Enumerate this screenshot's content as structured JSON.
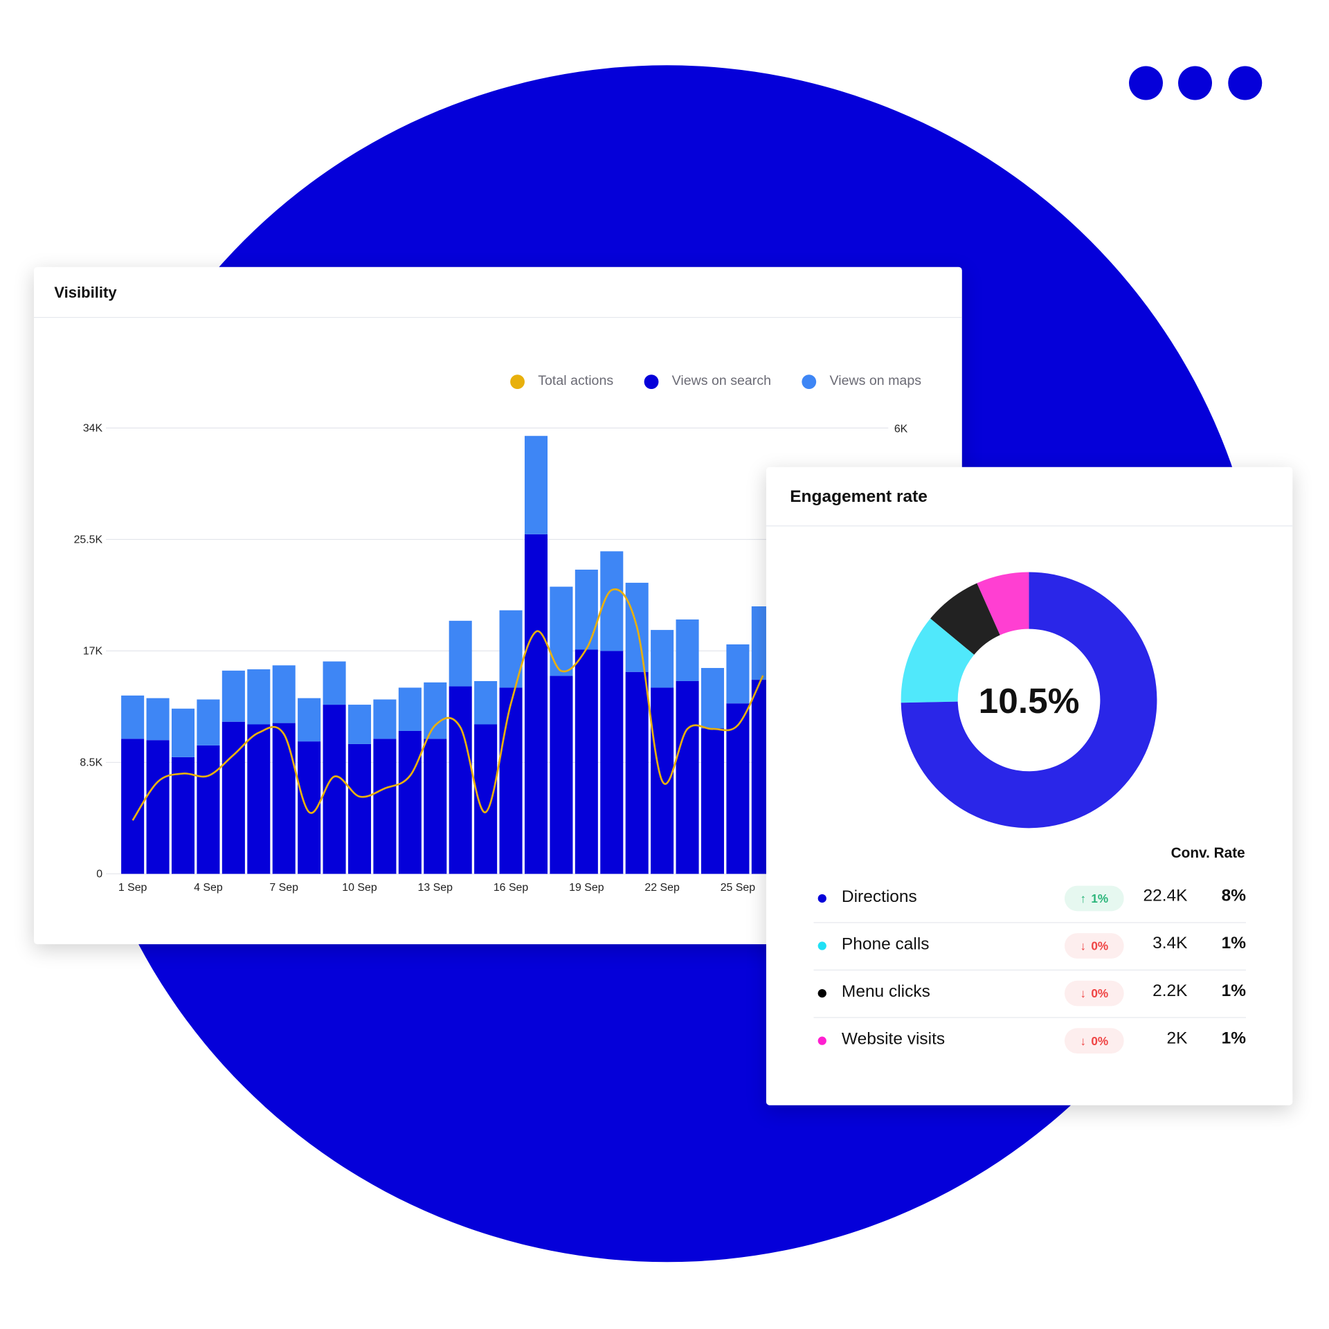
{
  "colors": {
    "background_circle": "#0500d9",
    "window_dots": "#0500d9",
    "views_on_search": "#0500d9",
    "views_on_maps": "#3e86f5",
    "total_actions": "#e8b00c",
    "donut_directions": "#2a26e8",
    "donut_phone_calls": "#50e8fb",
    "donut_menu_clicks": "#222222",
    "donut_website_visits": "#ff3fd2",
    "badge_up_bg": "#e6f8f0",
    "badge_up_text": "#2bb57a",
    "badge_down_bg": "#fdeeee",
    "badge_down_text": "#ef4444"
  },
  "visibility": {
    "title": "Visibility"
  },
  "engagement": {
    "title": "Engagement rate",
    "center_value": "10.5%",
    "conv_rate_header": "Conv. Rate",
    "rows": [
      {
        "label": "Directions",
        "color": "#0500d9",
        "change": "1%",
        "trend": "up",
        "trend_icon": "arrow-up-icon",
        "value": "22.4K",
        "conv_rate": "8%"
      },
      {
        "label": "Phone calls",
        "color": "#20e0f5",
        "change": "0%",
        "trend": "down",
        "trend_icon": "arrow-down-icon",
        "value": "3.4K",
        "conv_rate": "1%"
      },
      {
        "label": "Menu clicks",
        "color": "#000000",
        "change": "0%",
        "trend": "down",
        "trend_icon": "arrow-down-icon",
        "value": "2.2K",
        "conv_rate": "1%"
      },
      {
        "label": "Website visits",
        "color": "#ff1fd0",
        "change": "0%",
        "trend": "down",
        "trend_icon": "arrow-down-icon",
        "value": "2K",
        "conv_rate": "1%"
      }
    ]
  },
  "chart_data": [
    {
      "type": "bar",
      "stacked": true,
      "legend": [
        "Total actions",
        "Views on search",
        "Views on maps"
      ],
      "legend_position": "top-right",
      "grid": true,
      "categories": [
        "1 Sep",
        "2 Sep",
        "3 Sep",
        "4 Sep",
        "5 Sep",
        "6 Sep",
        "7 Sep",
        "8 Sep",
        "9 Sep",
        "10 Sep",
        "11 Sep",
        "12 Sep",
        "13 Sep",
        "14 Sep",
        "15 Sep",
        "16 Sep",
        "17 Sep",
        "18 Sep",
        "19 Sep",
        "20 Sep",
        "21 Sep",
        "22 Sep",
        "23 Sep",
        "24 Sep",
        "25 Sep",
        "26 Sep"
      ],
      "x_tick_labels": [
        "1 Sep",
        "4 Sep",
        "7 Sep",
        "10 Sep",
        "13 Sep",
        "16 Sep",
        "19 Sep",
        "22 Sep",
        "25 Sep"
      ],
      "y_tick_labels": [
        "0",
        "8.5K",
        "17K",
        "25.5K",
        "34K"
      ],
      "y2_tick_labels": [
        "6K"
      ],
      "ylim": [
        0,
        34000
      ],
      "y2lim": [
        0,
        6000
      ],
      "series": [
        {
          "name": "Views on search",
          "axis": "left",
          "values": [
            10300,
            10200,
            8900,
            9800,
            11600,
            11400,
            11500,
            10100,
            12900,
            9900,
            10300,
            10900,
            10300,
            14300,
            11400,
            14200,
            25900,
            15100,
            17100,
            17000,
            15400,
            14200,
            14700,
            11100,
            13000,
            14800
          ]
        },
        {
          "name": "Views on maps",
          "axis": "left",
          "values": [
            3300,
            3200,
            3700,
            3500,
            3900,
            4200,
            4400,
            3300,
            3300,
            3000,
            3000,
            3300,
            4300,
            5000,
            3300,
            5900,
            7500,
            6800,
            6100,
            7600,
            6800,
            4400,
            4700,
            4600,
            4500,
            5600
          ]
        },
        {
          "name": "Total actions",
          "type": "line",
          "axis": "right",
          "values": [
            720,
            1240,
            1350,
            1320,
            1600,
            1900,
            1880,
            830,
            1310,
            1040,
            1150,
            1320,
            2000,
            1970,
            830,
            2290,
            3260,
            2730,
            3030,
            3820,
            3320,
            1250,
            1950,
            1950,
            2000,
            2670
          ]
        }
      ]
    },
    {
      "type": "pie",
      "donut": true,
      "categories": [
        "Directions",
        "Phone calls",
        "Menu clicks",
        "Website visits"
      ],
      "values": [
        22400,
        3400,
        2200,
        2000
      ]
    }
  ]
}
